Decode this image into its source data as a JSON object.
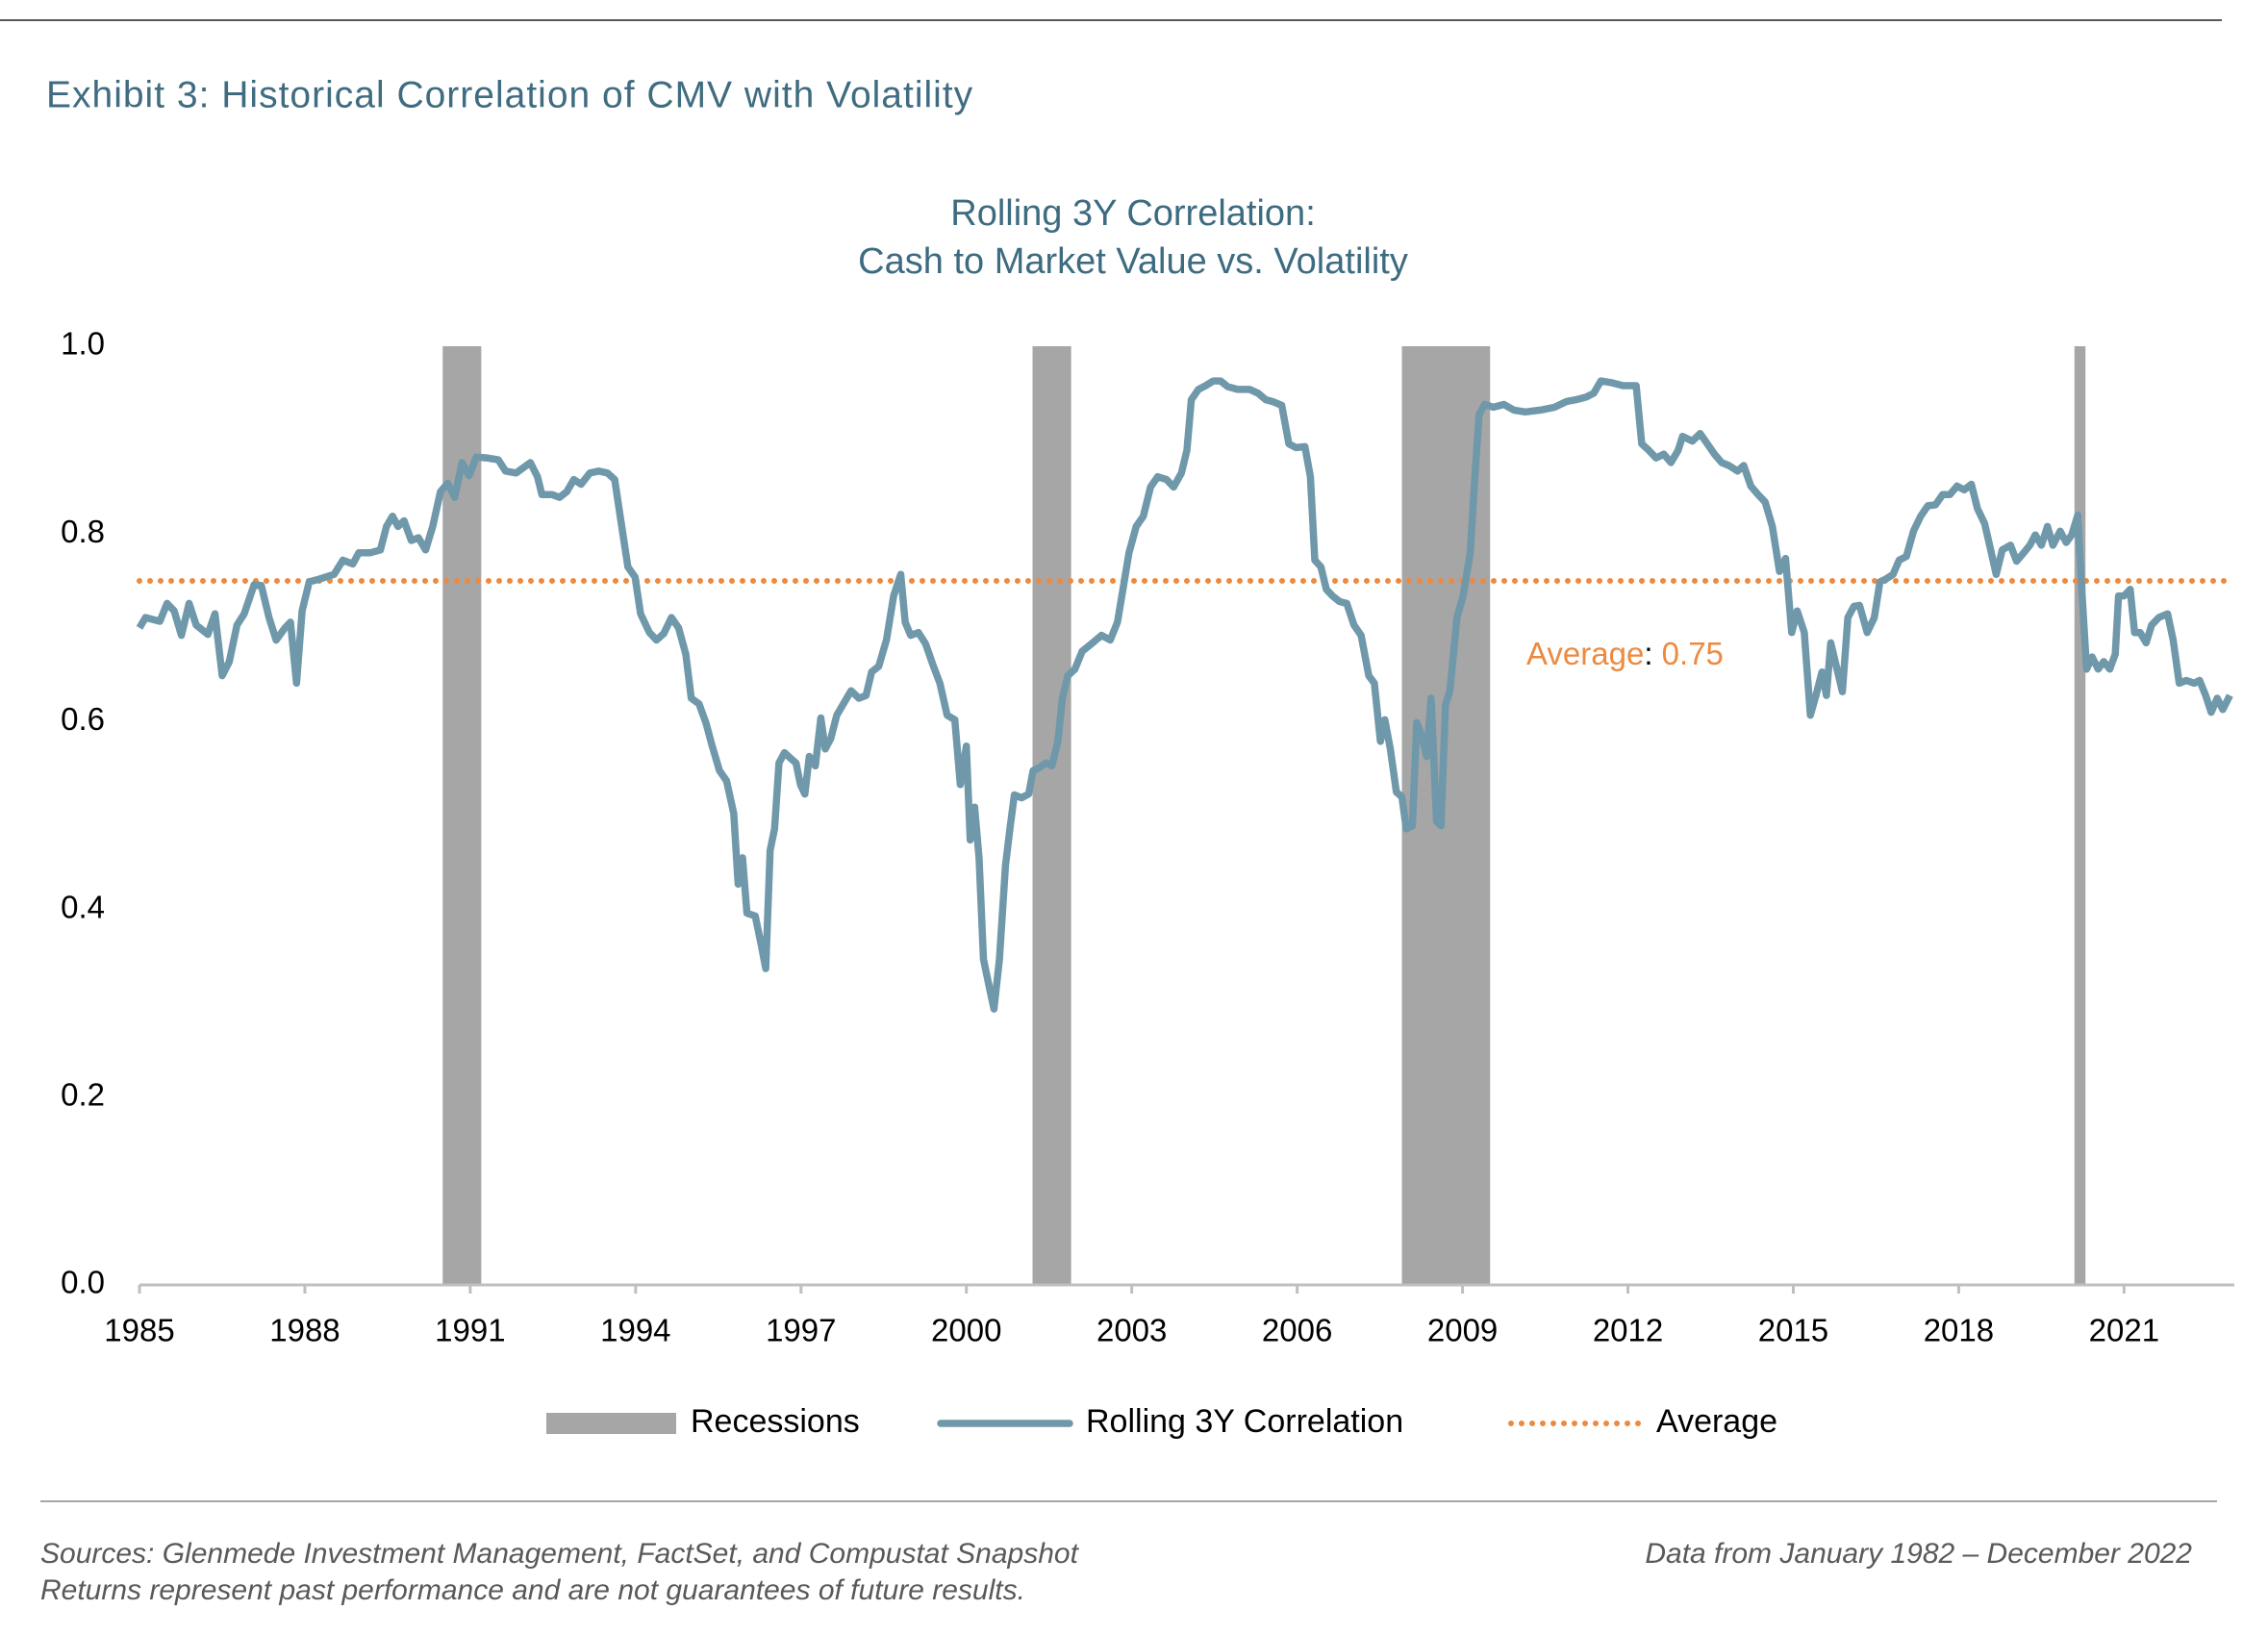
{
  "exhibit_title": "Exhibit 3: Historical Correlation of CMV with Volatility",
  "footer": {
    "sources": "Sources: Glenmede Investment Management, FactSet, and Compustat Snapshot",
    "disclaimer": "Returns represent past performance and are not guarantees of future results.",
    "data_range": "Data from January 1982 – December 2022"
  },
  "chart_data": {
    "type": "line",
    "title": [
      "Rolling 3Y Correlation:",
      "Cash to Market Value vs. Volatility"
    ],
    "xlim": [
      1985,
      2023
    ],
    "xticks": [
      1985,
      1988,
      1991,
      1994,
      1997,
      2000,
      2003,
      2006,
      2009,
      2012,
      2015,
      2018,
      2021
    ],
    "ylim": [
      0,
      1
    ],
    "yticks": [
      {
        "value": 0,
        "label": "0.0"
      },
      0.2,
      0.4,
      0.6,
      0.8,
      {
        "value": 1,
        "label": "1.0"
      }
    ],
    "grid": false,
    "legend": "bottom",
    "recessions": {
      "name": "Recessions",
      "color": "#a6a6a6",
      "periods": [
        [
          1990.5,
          1991.2
        ],
        [
          2001.2,
          2001.9
        ],
        [
          2007.9,
          2009.5
        ],
        [
          2020.1,
          2020.3
        ]
      ]
    },
    "average": {
      "name": "Average",
      "value": 0.75,
      "separator": ":",
      "color": "#ed8a3f"
    },
    "series": [
      {
        "name": "Rolling 3Y Correlation",
        "color": "#6f98aa",
        "x": [
          1985.0,
          1985.11,
          1985.37,
          1985.5,
          1985.63,
          1985.76,
          1985.9,
          1986.03,
          1986.24,
          1986.37,
          1986.5,
          1986.63,
          1986.77,
          1986.9,
          1987.08,
          1987.21,
          1987.35,
          1987.48,
          1987.64,
          1987.74,
          1987.85,
          1987.95,
          1988.08,
          1988.27,
          1988.53,
          1988.69,
          1988.87,
          1988.98,
          1989.19,
          1989.37,
          1989.48,
          1989.59,
          1989.69,
          1989.8,
          1989.93,
          1990.06,
          1990.19,
          1990.32,
          1990.46,
          1990.59,
          1990.72,
          1990.85,
          1990.98,
          1991.11,
          1991.3,
          1991.51,
          1991.64,
          1991.83,
          1992.09,
          1992.22,
          1992.3,
          1992.48,
          1992.62,
          1992.75,
          1992.88,
          1993.01,
          1993.17,
          1993.33,
          1993.49,
          1993.62,
          1993.72,
          1993.86,
          1993.99,
          1994.09,
          1994.25,
          1994.38,
          1994.51,
          1994.65,
          1994.78,
          1994.91,
          1995.01,
          1995.15,
          1995.28,
          1995.38,
          1995.52,
          1995.65,
          1995.78,
          1995.86,
          1995.94,
          1996.02,
          1996.17,
          1996.28,
          1996.36,
          1996.44,
          1996.52,
          1996.6,
          1996.7,
          1996.83,
          1996.91,
          1996.99,
          1997.07,
          1997.15,
          1997.26,
          1997.36,
          1997.44,
          1997.54,
          1997.65,
          1997.76,
          1997.91,
          1998.05,
          1998.18,
          1998.28,
          1998.41,
          1998.55,
          1998.68,
          1998.81,
          1998.89,
          1998.99,
          1999.13,
          1999.26,
          1999.39,
          1999.52,
          1999.65,
          1999.79,
          1999.89,
          2000.0,
          2000.07,
          2000.15,
          2000.23,
          2000.31,
          2000.42,
          2000.5,
          2000.6,
          2000.71,
          2000.79,
          2000.87,
          2001.0,
          2001.13,
          2001.21,
          2001.32,
          2001.45,
          2001.55,
          2001.66,
          2001.74,
          2001.84,
          2001.97,
          2002.1,
          2002.29,
          2002.45,
          2002.61,
          2002.74,
          2002.84,
          2002.95,
          2003.08,
          2003.21,
          2003.34,
          2003.47,
          2003.63,
          2003.76,
          2003.9,
          2004.0,
          2004.08,
          2004.21,
          2004.34,
          2004.48,
          2004.61,
          2004.74,
          2004.92,
          2005.14,
          2005.29,
          2005.43,
          2005.56,
          2005.72,
          2005.85,
          2005.98,
          2006.14,
          2006.24,
          2006.32,
          2006.43,
          2006.53,
          2006.64,
          2006.77,
          2006.9,
          2007.03,
          2007.16,
          2007.3,
          2007.4,
          2007.51,
          2007.59,
          2007.69,
          2007.8,
          2007.9,
          2007.98,
          2008.09,
          2008.17,
          2008.25,
          2008.35,
          2008.43,
          2008.53,
          2008.61,
          2008.69,
          2008.77,
          2008.9,
          2009.01,
          2009.14,
          2009.22,
          2009.3,
          2009.4,
          2009.56,
          2009.75,
          2009.93,
          2010.14,
          2010.41,
          2010.67,
          2010.88,
          2011.06,
          2011.25,
          2011.38,
          2011.51,
          2011.72,
          2011.91,
          2012.15,
          2012.25,
          2012.38,
          2012.51,
          2012.65,
          2012.78,
          2012.91,
          2012.99,
          2013.17,
          2013.31,
          2013.44,
          2013.57,
          2013.7,
          2013.83,
          2013.99,
          2014.1,
          2014.23,
          2014.36,
          2014.49,
          2014.62,
          2014.75,
          2014.86,
          2014.97,
          2015.07,
          2015.2,
          2015.31,
          2015.41,
          2015.52,
          2015.6,
          2015.68,
          2015.78,
          2015.89,
          2015.99,
          2016.1,
          2016.2,
          2016.34,
          2016.47,
          2016.57,
          2016.68,
          2016.81,
          2016.92,
          2017.05,
          2017.18,
          2017.31,
          2017.44,
          2017.58,
          2017.71,
          2017.84,
          2017.97,
          2018.1,
          2018.23,
          2018.34,
          2018.47,
          2018.58,
          2018.68,
          2018.79,
          2018.94,
          2019.05,
          2019.18,
          2019.29,
          2019.39,
          2019.5,
          2019.61,
          2019.71,
          2019.84,
          2019.95,
          2020.05,
          2020.16,
          2020.24,
          2020.32,
          2020.42,
          2020.53,
          2020.63,
          2020.74,
          2020.84,
          2020.9,
          2021.0,
          2021.11,
          2021.19,
          2021.29,
          2021.4,
          2021.5,
          2021.63,
          2021.79,
          2021.89,
          2022.0,
          2022.13,
          2022.27,
          2022.37,
          2022.48,
          2022.58,
          2022.69,
          2022.79,
          2022.92
        ],
        "values": [
          0.7,
          0.711,
          0.707,
          0.726,
          0.718,
          0.692,
          0.726,
          0.703,
          0.693,
          0.715,
          0.649,
          0.664,
          0.703,
          0.715,
          0.746,
          0.745,
          0.711,
          0.687,
          0.7,
          0.706,
          0.641,
          0.718,
          0.749,
          0.752,
          0.757,
          0.772,
          0.768,
          0.78,
          0.78,
          0.783,
          0.808,
          0.819,
          0.808,
          0.814,
          0.793,
          0.796,
          0.783,
          0.808,
          0.845,
          0.854,
          0.839,
          0.876,
          0.862,
          0.882,
          0.881,
          0.879,
          0.867,
          0.865,
          0.876,
          0.861,
          0.842,
          0.842,
          0.839,
          0.845,
          0.858,
          0.853,
          0.865,
          0.867,
          0.865,
          0.858,
          0.819,
          0.765,
          0.754,
          0.715,
          0.695,
          0.687,
          0.694,
          0.711,
          0.7,
          0.672,
          0.625,
          0.619,
          0.598,
          0.576,
          0.548,
          0.537,
          0.502,
          0.427,
          0.455,
          0.396,
          0.393,
          0.362,
          0.337,
          0.463,
          0.486,
          0.556,
          0.567,
          0.56,
          0.556,
          0.533,
          0.523,
          0.563,
          0.553,
          0.604,
          0.571,
          0.582,
          0.607,
          0.618,
          0.633,
          0.625,
          0.628,
          0.653,
          0.659,
          0.687,
          0.734,
          0.757,
          0.706,
          0.692,
          0.695,
          0.683,
          0.661,
          0.641,
          0.607,
          0.602,
          0.533,
          0.574,
          0.474,
          0.509,
          0.455,
          0.347,
          0.316,
          0.294,
          0.347,
          0.447,
          0.486,
          0.522,
          0.519,
          0.523,
          0.548,
          0.551,
          0.556,
          0.553,
          0.579,
          0.625,
          0.649,
          0.656,
          0.675,
          0.684,
          0.692,
          0.687,
          0.706,
          0.741,
          0.78,
          0.808,
          0.819,
          0.85,
          0.861,
          0.858,
          0.85,
          0.865,
          0.889,
          0.943,
          0.954,
          0.958,
          0.963,
          0.963,
          0.957,
          0.954,
          0.954,
          0.95,
          0.943,
          0.941,
          0.937,
          0.896,
          0.892,
          0.893,
          0.861,
          0.772,
          0.765,
          0.741,
          0.734,
          0.728,
          0.726,
          0.703,
          0.692,
          0.649,
          0.641,
          0.579,
          0.602,
          0.571,
          0.525,
          0.52,
          0.486,
          0.489,
          0.599,
          0.587,
          0.563,
          0.625,
          0.494,
          0.489,
          0.618,
          0.633,
          0.711,
          0.734,
          0.78,
          0.858,
          0.927,
          0.938,
          0.935,
          0.938,
          0.932,
          0.93,
          0.932,
          0.935,
          0.941,
          0.943,
          0.946,
          0.95,
          0.963,
          0.961,
          0.958,
          0.958,
          0.896,
          0.889,
          0.881,
          0.885,
          0.876,
          0.889,
          0.904,
          0.899,
          0.907,
          0.896,
          0.885,
          0.876,
          0.873,
          0.867,
          0.873,
          0.851,
          0.842,
          0.834,
          0.808,
          0.76,
          0.774,
          0.695,
          0.718,
          0.695,
          0.607,
          0.628,
          0.653,
          0.628,
          0.684,
          0.659,
          0.632,
          0.711,
          0.723,
          0.724,
          0.695,
          0.711,
          0.749,
          0.752,
          0.757,
          0.772,
          0.776,
          0.803,
          0.819,
          0.83,
          0.831,
          0.842,
          0.842,
          0.851,
          0.847,
          0.853,
          0.827,
          0.811,
          0.783,
          0.757,
          0.783,
          0.788,
          0.771,
          0.78,
          0.788,
          0.799,
          0.788,
          0.808,
          0.788,
          0.803,
          0.791,
          0.799,
          0.82,
          0.734,
          0.656,
          0.669,
          0.656,
          0.664,
          0.656,
          0.672,
          0.734,
          0.734,
          0.741,
          0.695,
          0.695,
          0.684,
          0.703,
          0.711,
          0.715,
          0.687,
          0.641,
          0.644,
          0.641,
          0.644,
          0.628,
          0.61,
          0.625,
          0.613,
          0.628
        ]
      }
    ]
  }
}
